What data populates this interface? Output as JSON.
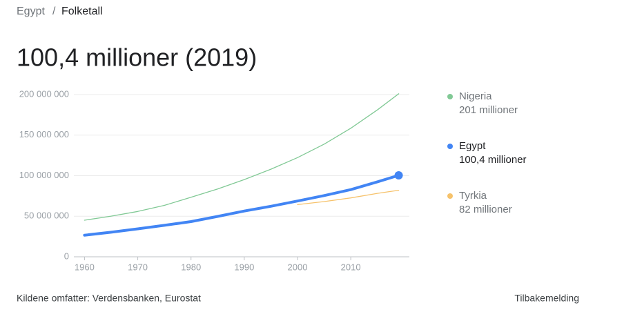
{
  "breadcrumb": [
    "Egypt",
    "Folketall"
  ],
  "breadcrumb_separator": "/",
  "chart_data": {
    "type": "line",
    "title": "100,4 millioner (2019)",
    "x": [
      1960,
      1965,
      1970,
      1975,
      1980,
      1985,
      1990,
      1995,
      2000,
      2005,
      2010,
      2015,
      2019
    ],
    "series": [
      {
        "name": "Nigeria",
        "color": "#81c995",
        "legend_value_label": "201 millioner",
        "values": [
          45100000,
          50100000,
          55900000,
          63400000,
          73400000,
          83600000,
          95200000,
          108000000,
          122300000,
          138900000,
          158500000,
          181100000,
          201000000
        ]
      },
      {
        "name": "Egypt",
        "color": "#4285f4",
        "legend_value_label": "100,4 millioner",
        "values": [
          26600000,
          30300000,
          34500000,
          38800000,
          43400000,
          49800000,
          56400000,
          62300000,
          68800000,
          75500000,
          82800000,
          92400000,
          100400000
        ]
      },
      {
        "name": "Tyrkia",
        "color": "#f6c26b",
        "legend_value_label": "82 millioner",
        "values": [
          null,
          null,
          null,
          null,
          null,
          null,
          null,
          null,
          64300000,
          68100000,
          72600000,
          78200000,
          82000000
        ]
      }
    ],
    "highlight_series": 1,
    "xlim": [
      1958,
      2021
    ],
    "xticks": [
      1960,
      1970,
      1980,
      1990,
      2000,
      2010
    ],
    "ylim": [
      0,
      200000000
    ],
    "yticks": [
      0,
      {
        "value": 50000000,
        "label": "50 000 000"
      },
      {
        "value": 100000000,
        "label": "100 000 000"
      },
      {
        "value": 150000000,
        "label": "150 000 000"
      },
      {
        "value": 200000000,
        "label": "200 000 000"
      }
    ],
    "grid": true
  },
  "footer": {
    "sources": "Kildene omfatter: Verdensbanken, Eurostat",
    "feedback": "Tilbakemelding"
  }
}
